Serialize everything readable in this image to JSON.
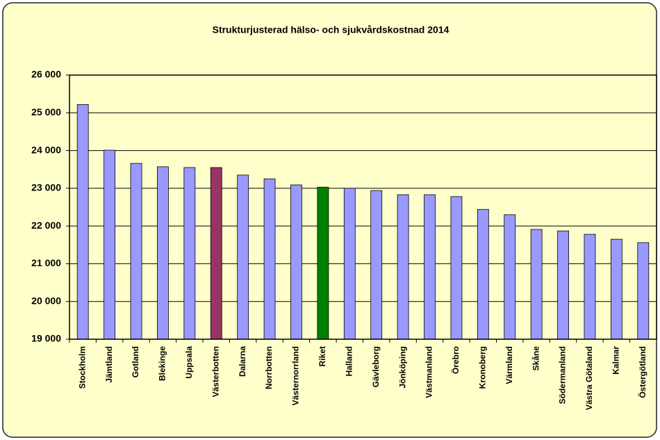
{
  "chart_data": {
    "type": "bar",
    "title": "Strukturjusterad hälso- och sjukvårdskostnad 2014",
    "categories": [
      "Stockholm",
      "Jämtland",
      "Gotland",
      "Blekinge",
      "Uppsala",
      "Västerbotten",
      "Dalarna",
      "Norrbotten",
      "Västernorrland",
      "Riket",
      "Halland",
      "Gävleborg",
      "Jönköping",
      "Västmanland",
      "Örebro",
      "Kronoberg",
      "Värmland",
      "Skåne",
      "Södermanland",
      "Västra Götaland",
      "Kalmar",
      "Östergötland"
    ],
    "values": [
      25220,
      24010,
      23660,
      23570,
      23550,
      23550,
      23350,
      23250,
      23090,
      23030,
      23000,
      22940,
      22830,
      22830,
      22780,
      22440,
      22300,
      21910,
      21870,
      21780,
      21650,
      21560
    ],
    "colors": [
      "#9999ff",
      "#9999ff",
      "#9999ff",
      "#9999ff",
      "#9999ff",
      "#993366",
      "#9999ff",
      "#9999ff",
      "#9999ff",
      "#008000",
      "#9999ff",
      "#9999ff",
      "#9999ff",
      "#9999ff",
      "#9999ff",
      "#9999ff",
      "#9999ff",
      "#9999ff",
      "#9999ff",
      "#9999ff",
      "#9999ff",
      "#9999ff"
    ],
    "ylim": [
      19000,
      26000
    ],
    "yticks": [
      {
        "value": 19000,
        "label": "19 000"
      },
      {
        "value": 20000,
        "label": "20 000"
      },
      {
        "value": 21000,
        "label": "21 000"
      },
      {
        "value": 22000,
        "label": "22 000"
      },
      {
        "value": 23000,
        "label": "23 000"
      },
      {
        "value": 24000,
        "label": "24 000"
      },
      {
        "value": 25000,
        "label": "25 000"
      },
      {
        "value": 26000,
        "label": "26 000"
      }
    ],
    "grid": true
  }
}
